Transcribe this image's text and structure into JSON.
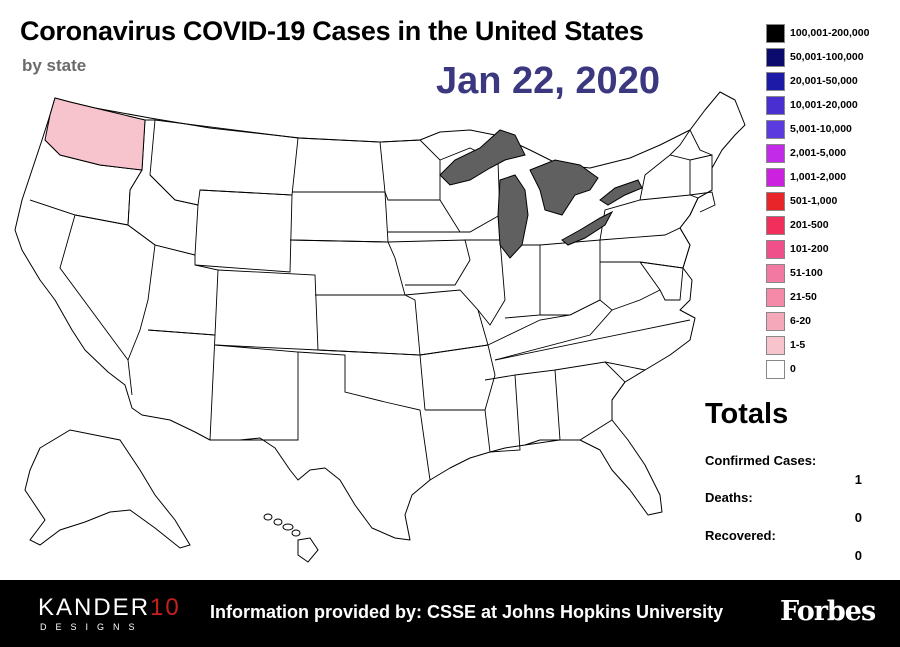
{
  "header": {
    "title": "Coronavirus COVID-19 Cases in the United States",
    "subtitle": "by state",
    "date": "Jan 22, 2020"
  },
  "legend": [
    {
      "label": "100,001-200,000",
      "color": "#000000"
    },
    {
      "label": "50,001-100,000",
      "color": "#0b0b6e"
    },
    {
      "label": "20,001-50,000",
      "color": "#1e1aa8"
    },
    {
      "label": "10,001-20,000",
      "color": "#4a2fd0"
    },
    {
      "label": "5,001-10,000",
      "color": "#5b3be0"
    },
    {
      "label": "2,001-5,000",
      "color": "#c22be8"
    },
    {
      "label": "1,001-2,000",
      "color": "#cc22e0"
    },
    {
      "label": "501-1,000",
      "color": "#e8262a"
    },
    {
      "label": "201-500",
      "color": "#f22e5c"
    },
    {
      "label": "101-200",
      "color": "#f0508a"
    },
    {
      "label": "51-100",
      "color": "#f27aa2"
    },
    {
      "label": "21-50",
      "color": "#f48aa8"
    },
    {
      "label": "6-20",
      "color": "#f6a8bb"
    },
    {
      "label": "1-5",
      "color": "#f7c4cd"
    },
    {
      "label": "0",
      "color": "#ffffff"
    }
  ],
  "map": {
    "highlighted_state": "Washington",
    "highlighted_bucket": "1-5",
    "lakes_color": "#606060",
    "default_fill": "#ffffff"
  },
  "totals": {
    "title": "Totals",
    "confirmed_label": "Confirmed Cases:",
    "confirmed_value": "1",
    "deaths_label": "Deaths:",
    "deaths_value": "0",
    "recovered_label": "Recovered:",
    "recovered_value": "0"
  },
  "footer": {
    "brand_main": "KANDER",
    "brand_num": "10",
    "brand_sub": "DESIGNS",
    "info": "Information provided by: CSSE at Johns Hopkins University",
    "partner": "Forbes"
  }
}
